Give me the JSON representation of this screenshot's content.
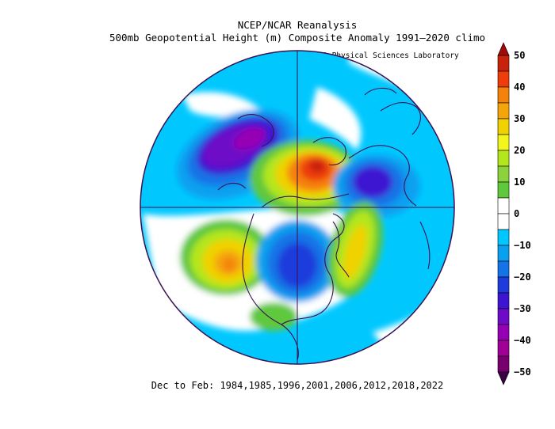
{
  "title_line1": "NCEP/NCAR Reanalysis",
  "title_line2": "500mb Geopotential Height (m) Composite Anomaly 1991–2020 climo",
  "credit": "NOAA Physical Sciences Laboratory",
  "footer": "Dec to Feb: 1984,1985,1996,2001,2006,2012,2018,2022",
  "projection": "north-polar-stereographic",
  "colorbar": {
    "min": -50,
    "max": 50,
    "step": 5,
    "tick_labels": [
      "50",
      "40",
      "30",
      "20",
      "10",
      "0",
      "−10",
      "−20",
      "−30",
      "−40",
      "−50"
    ],
    "levels": [
      {
        "from": 45,
        "to": 50,
        "color": "#c8230a"
      },
      {
        "from": 40,
        "to": 45,
        "color": "#ee3d0a"
      },
      {
        "from": 35,
        "to": 40,
        "color": "#f5820a"
      },
      {
        "from": 30,
        "to": 35,
        "color": "#f5a50a"
      },
      {
        "from": 25,
        "to": 30,
        "color": "#f0d200"
      },
      {
        "from": 20,
        "to": 25,
        "color": "#f5f51e"
      },
      {
        "from": 15,
        "to": 20,
        "color": "#b4e61e"
      },
      {
        "from": 10,
        "to": 15,
        "color": "#8cd23c"
      },
      {
        "from": 5,
        "to": 10,
        "color": "#5fc83c"
      },
      {
        "from": 0,
        "to": 5,
        "color": "#ffffff"
      },
      {
        "from": -5,
        "to": 0,
        "color": "#ffffff"
      },
      {
        "from": -10,
        "to": -5,
        "color": "#00c8ff"
      },
      {
        "from": -15,
        "to": -10,
        "color": "#0aa0f0"
      },
      {
        "from": -20,
        "to": -15,
        "color": "#1473e6"
      },
      {
        "from": -25,
        "to": -20,
        "color": "#1e3cdc"
      },
      {
        "from": -30,
        "to": -25,
        "color": "#3c14d2"
      },
      {
        "from": -35,
        "to": -30,
        "color": "#6e0ac8"
      },
      {
        "from": -40,
        "to": -35,
        "color": "#9600b4"
      },
      {
        "from": -45,
        "to": -40,
        "color": "#a00096"
      },
      {
        "from": -50,
        "to": -45,
        "color": "#78006e"
      }
    ],
    "over_color": "#a00a0a",
    "under_color": "#3c0046"
  }
}
